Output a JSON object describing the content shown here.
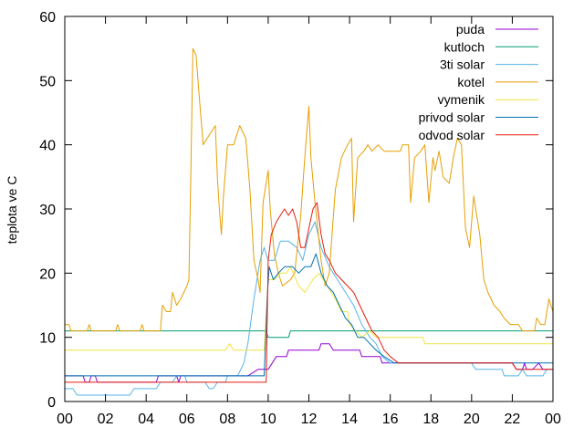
{
  "chart_data": {
    "type": "line",
    "ylabel": "teplota ve C",
    "xlabel": "",
    "title": "",
    "x_ticks": [
      "00",
      "02",
      "04",
      "06",
      "08",
      "10",
      "12",
      "14",
      "16",
      "18",
      "20",
      "22",
      "00"
    ],
    "xlim": [
      0,
      24
    ],
    "ylim": [
      0,
      60
    ],
    "y_ticks": [
      0,
      10,
      20,
      30,
      40,
      50,
      60
    ],
    "grid": false,
    "legend_position": "top-right",
    "series": [
      {
        "name": "puda",
        "color": "#9400d3",
        "points": [
          [
            0,
            4
          ],
          [
            0.9,
            4
          ],
          [
            1,
            3
          ],
          [
            1.2,
            3
          ],
          [
            1.3,
            4
          ],
          [
            1.5,
            4
          ],
          [
            1.6,
            3
          ],
          [
            4.5,
            3
          ],
          [
            4.6,
            4
          ],
          [
            5.5,
            4
          ],
          [
            5.6,
            3
          ],
          [
            5.7,
            4
          ],
          [
            9,
            4
          ],
          [
            9.5,
            5
          ],
          [
            10,
            5
          ],
          [
            10.2,
            6
          ],
          [
            10.4,
            7
          ],
          [
            10.9,
            7
          ],
          [
            11,
            8
          ],
          [
            12.5,
            8
          ],
          [
            12.6,
            9
          ],
          [
            13,
            9
          ],
          [
            13.2,
            8
          ],
          [
            14.5,
            8
          ],
          [
            14.6,
            7
          ],
          [
            15.5,
            7
          ],
          [
            15.6,
            6
          ],
          [
            22,
            6
          ],
          [
            22.2,
            5
          ],
          [
            22.5,
            5
          ],
          [
            22.6,
            6
          ],
          [
            22.7,
            5
          ],
          [
            23,
            5
          ],
          [
            23.3,
            6
          ],
          [
            23.5,
            5
          ],
          [
            24,
            5
          ]
        ]
      },
      {
        "name": "kutloch",
        "color": "#009e73",
        "points": [
          [
            0,
            11
          ],
          [
            9.9,
            11
          ],
          [
            10,
            10
          ],
          [
            11,
            10
          ],
          [
            11.1,
            11
          ],
          [
            24,
            11
          ]
        ]
      },
      {
        "name": "3ti solar",
        "color": "#56b4e9",
        "points": [
          [
            0,
            2
          ],
          [
            0.4,
            2
          ],
          [
            0.6,
            1
          ],
          [
            3.2,
            1
          ],
          [
            3.4,
            2
          ],
          [
            4.5,
            2
          ],
          [
            4.7,
            3
          ],
          [
            5.3,
            3
          ],
          [
            5.5,
            4
          ],
          [
            5.9,
            4
          ],
          [
            6,
            3
          ],
          [
            6.9,
            3
          ],
          [
            7.1,
            2
          ],
          [
            7.3,
            2
          ],
          [
            7.5,
            3
          ],
          [
            7.9,
            3
          ],
          [
            8,
            4
          ],
          [
            8.5,
            4
          ],
          [
            8.8,
            6
          ],
          [
            9,
            9
          ],
          [
            9.3,
            16
          ],
          [
            9.6,
            22
          ],
          [
            9.8,
            24
          ],
          [
            10,
            22
          ],
          [
            10.3,
            22
          ],
          [
            10.6,
            25
          ],
          [
            11,
            25
          ],
          [
            11.4,
            24
          ],
          [
            11.7,
            22
          ],
          [
            12,
            26
          ],
          [
            12.3,
            28
          ],
          [
            12.6,
            24
          ],
          [
            13,
            21
          ],
          [
            13.4,
            19
          ],
          [
            13.8,
            17
          ],
          [
            14.2,
            15
          ],
          [
            14.6,
            12
          ],
          [
            15,
            10
          ],
          [
            15.3,
            9
          ],
          [
            15.6,
            7
          ],
          [
            16,
            6
          ],
          [
            20,
            6
          ],
          [
            20.2,
            5
          ],
          [
            21.5,
            5
          ],
          [
            21.6,
            4
          ],
          [
            22.3,
            4
          ],
          [
            22.5,
            5
          ],
          [
            22.7,
            4
          ],
          [
            23.5,
            4
          ],
          [
            23.7,
            5
          ],
          [
            24,
            5
          ]
        ]
      },
      {
        "name": "kotel",
        "color": "#e69f00",
        "points": [
          [
            0,
            12
          ],
          [
            0.2,
            12
          ],
          [
            0.3,
            11
          ],
          [
            1.1,
            11
          ],
          [
            1.2,
            12
          ],
          [
            1.3,
            11
          ],
          [
            2.5,
            11
          ],
          [
            2.6,
            12
          ],
          [
            2.7,
            11
          ],
          [
            3.7,
            11
          ],
          [
            3.8,
            12
          ],
          [
            3.9,
            11
          ],
          [
            4.7,
            11
          ],
          [
            4.8,
            15
          ],
          [
            5,
            14
          ],
          [
            5.2,
            14
          ],
          [
            5.3,
            17
          ],
          [
            5.5,
            15
          ],
          [
            5.7,
            16
          ],
          [
            6,
            18
          ],
          [
            6.1,
            19
          ],
          [
            6.2,
            36
          ],
          [
            6.3,
            55
          ],
          [
            6.45,
            54
          ],
          [
            6.6,
            48
          ],
          [
            6.8,
            40
          ],
          [
            7,
            41
          ],
          [
            7.2,
            42
          ],
          [
            7.4,
            43
          ],
          [
            7.5,
            35
          ],
          [
            7.6,
            30
          ],
          [
            7.7,
            26
          ],
          [
            7.8,
            32
          ],
          [
            8,
            40
          ],
          [
            8.3,
            40
          ],
          [
            8.6,
            43
          ],
          [
            8.9,
            41
          ],
          [
            9.1,
            33
          ],
          [
            9.3,
            22
          ],
          [
            9.5,
            19
          ],
          [
            9.6,
            17
          ],
          [
            9.75,
            31
          ],
          [
            10,
            36
          ],
          [
            10.1,
            30
          ],
          [
            10.3,
            23
          ],
          [
            10.5,
            20
          ],
          [
            10.7,
            18
          ],
          [
            11.1,
            19
          ],
          [
            11.3,
            20
          ],
          [
            11.6,
            29
          ],
          [
            11.8,
            38
          ],
          [
            12,
            46
          ],
          [
            12.1,
            38
          ],
          [
            12.3,
            31
          ],
          [
            12.6,
            22
          ],
          [
            12.8,
            18
          ],
          [
            13,
            20
          ],
          [
            13.3,
            33
          ],
          [
            13.6,
            38
          ],
          [
            13.9,
            40
          ],
          [
            14.1,
            41
          ],
          [
            14.2,
            28
          ],
          [
            14.4,
            38
          ],
          [
            14.7,
            39
          ],
          [
            14.9,
            40
          ],
          [
            15.1,
            39
          ],
          [
            15.4,
            40
          ],
          [
            15.7,
            39
          ],
          [
            16.5,
            39
          ],
          [
            16.6,
            40
          ],
          [
            16.9,
            40
          ],
          [
            17,
            31
          ],
          [
            17.2,
            38
          ],
          [
            17.5,
            39
          ],
          [
            17.7,
            40
          ],
          [
            17.9,
            31
          ],
          [
            18.1,
            38
          ],
          [
            18.2,
            36
          ],
          [
            18.4,
            39
          ],
          [
            18.6,
            35
          ],
          [
            18.9,
            34
          ],
          [
            19.1,
            38
          ],
          [
            19.3,
            41
          ],
          [
            19.5,
            40
          ],
          [
            19.7,
            27
          ],
          [
            19.9,
            24
          ],
          [
            20.1,
            32
          ],
          [
            20.4,
            26
          ],
          [
            20.6,
            19
          ],
          [
            20.8,
            17
          ],
          [
            21.1,
            15
          ],
          [
            21.4,
            14
          ],
          [
            21.6,
            13
          ],
          [
            21.9,
            12
          ],
          [
            22.3,
            12
          ],
          [
            22.5,
            11
          ],
          [
            23.1,
            11
          ],
          [
            23.2,
            13
          ],
          [
            23.4,
            12
          ],
          [
            23.6,
            12
          ],
          [
            23.8,
            16
          ],
          [
            24,
            14
          ]
        ]
      },
      {
        "name": "vymenik",
        "color": "#f0e442",
        "points": [
          [
            0,
            8
          ],
          [
            7.9,
            8
          ],
          [
            8.1,
            9
          ],
          [
            8.3,
            8
          ],
          [
            9.8,
            8
          ],
          [
            10,
            19
          ],
          [
            10.3,
            19
          ],
          [
            10.6,
            20
          ],
          [
            10.9,
            20
          ],
          [
            11.1,
            21
          ],
          [
            11.5,
            18
          ],
          [
            11.8,
            17
          ],
          [
            12.2,
            19
          ],
          [
            12.5,
            20
          ],
          [
            12.9,
            18
          ],
          [
            13.3,
            16
          ],
          [
            13.6,
            14
          ],
          [
            13.9,
            14
          ],
          [
            14,
            12
          ],
          [
            14.3,
            11
          ],
          [
            14.6,
            10
          ],
          [
            15,
            11
          ],
          [
            15.3,
            10
          ],
          [
            17.6,
            10
          ],
          [
            17.7,
            9
          ],
          [
            24,
            9
          ]
        ]
      },
      {
        "name": "privod solar",
        "color": "#0072b2",
        "points": [
          [
            0,
            4
          ],
          [
            9.8,
            4
          ],
          [
            9.95,
            16
          ],
          [
            10.05,
            21
          ],
          [
            10.25,
            19
          ],
          [
            10.5,
            20
          ],
          [
            10.8,
            21
          ],
          [
            11.2,
            21
          ],
          [
            11.5,
            20
          ],
          [
            11.8,
            21
          ],
          [
            12.1,
            21
          ],
          [
            12.35,
            23
          ],
          [
            12.6,
            20
          ],
          [
            12.9,
            18
          ],
          [
            13.2,
            17
          ],
          [
            13.5,
            15
          ],
          [
            13.8,
            13
          ],
          [
            14.1,
            12
          ],
          [
            14.4,
            10
          ],
          [
            14.7,
            10
          ],
          [
            15,
            9
          ],
          [
            15.3,
            8
          ],
          [
            15.7,
            7
          ],
          [
            16.2,
            6
          ],
          [
            24,
            6
          ]
        ]
      },
      {
        "name": "odvod solar",
        "color": "#e51e10",
        "points": [
          [
            0,
            3
          ],
          [
            9.9,
            3
          ],
          [
            10,
            22
          ],
          [
            10.15,
            26
          ],
          [
            10.4,
            28
          ],
          [
            10.6,
            29
          ],
          [
            10.8,
            30
          ],
          [
            11,
            29
          ],
          [
            11.2,
            30
          ],
          [
            11.4,
            28
          ],
          [
            11.6,
            24
          ],
          [
            11.8,
            24
          ],
          [
            12,
            27
          ],
          [
            12.2,
            30
          ],
          [
            12.4,
            31
          ],
          [
            12.6,
            26
          ],
          [
            12.8,
            23
          ],
          [
            13,
            22
          ],
          [
            13.3,
            20
          ],
          [
            13.6,
            19
          ],
          [
            13.9,
            18
          ],
          [
            14.2,
            17
          ],
          [
            14.5,
            15
          ],
          [
            14.8,
            13
          ],
          [
            15.1,
            11
          ],
          [
            15.4,
            10
          ],
          [
            15.7,
            8
          ],
          [
            16,
            7
          ],
          [
            16.4,
            6
          ],
          [
            22,
            6
          ],
          [
            22.2,
            5
          ],
          [
            24,
            5
          ]
        ]
      }
    ]
  }
}
